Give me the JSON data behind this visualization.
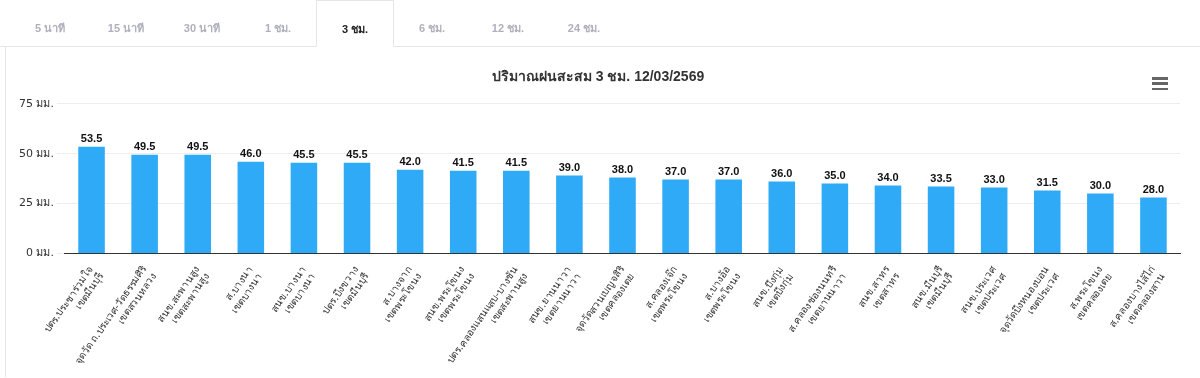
{
  "chart_data": {
    "type": "bar",
    "title": "ปริมาณฝนสะสม 3 ชม. 12/03/2569",
    "categories": [
      "ปตร.ประชาร่วมใจ\nเขตมีนบุรี",
      "จุดวัด ถ.ประเวศ-วัดธรรมศิริ\nเขตสวนหลวง",
      "สนข.สะพานสูง\nเขตสะพานสูง",
      "ส.บางนา\nเขตบางนา",
      "สนข.บางนา\nเขตบางนา",
      "ปตร.บึงขวาง\nเขตมีนบุรี",
      "ส.บางจาก\nเขตพระโขนง",
      "สนข.พระโขนง\nเขตพระโขนง",
      "ปตร.คลองแสนแสบ-บางชัน\nเขตสะพานสูง",
      "สนข.ยานนาวา\nเขตยานนาวา",
      "จุดวัดสวนเบญจสิริ\nเขตคลองเตย",
      "ส.คลองเจ๊ก\nเขตพระโขนง",
      "ส.บางอ้อ\nเขตพระโขนง",
      "สนข.บึงกุ่ม\nเขตบึงกุ่ม",
      "ส.คลองช่องนนทรี\nเขตยานนาวา",
      "สนข.สาทร\nเขตสาทร",
      "สนข.มีนบุรี\nเขตมีนบุรี",
      "สนข.ประเวศ\nเขตประเวศ",
      "จุดวัดบึงหนองบอน\nเขตประเวศ",
      "ส.พระโขนง\nเขตคลองเตย",
      "ส.คลองบางไส้ไก่\nเขตคลองสาน"
    ],
    "values": [
      53.5,
      49.5,
      49.5,
      46.0,
      45.5,
      45.5,
      42.0,
      41.5,
      41.5,
      39.0,
      38.0,
      37.0,
      37.0,
      36.0,
      35.0,
      34.0,
      33.5,
      33.0,
      31.5,
      30.0,
      28.0
    ],
    "value_labels": [
      "53.5",
      "49.5",
      "49.5",
      "46.0",
      "45.5",
      "45.5",
      "42.0",
      "41.5",
      "41.5",
      "39.0",
      "38.0",
      "37.0",
      "37.0",
      "36.0",
      "35.0",
      "34.0",
      "33.5",
      "33.0",
      "31.5",
      "30.0",
      "28.0"
    ],
    "color": "#2eaaf7",
    "ylim": [
      0,
      75
    ],
    "yticks": [
      {
        "value": 0,
        "label": "0 มม."
      },
      {
        "value": 25,
        "label": "25 มม."
      },
      {
        "value": 50,
        "label": "50 มม."
      },
      {
        "value": 75,
        "label": "75 มม."
      }
    ],
    "grid": "y",
    "legend": false,
    "annotations": [
      "5 นาที",
      "15 นาที",
      "30 นาที",
      "1 ชม.",
      "3 ชม.",
      "6 ชม.",
      "12 ชม.",
      "24 ชม."
    ]
  }
}
